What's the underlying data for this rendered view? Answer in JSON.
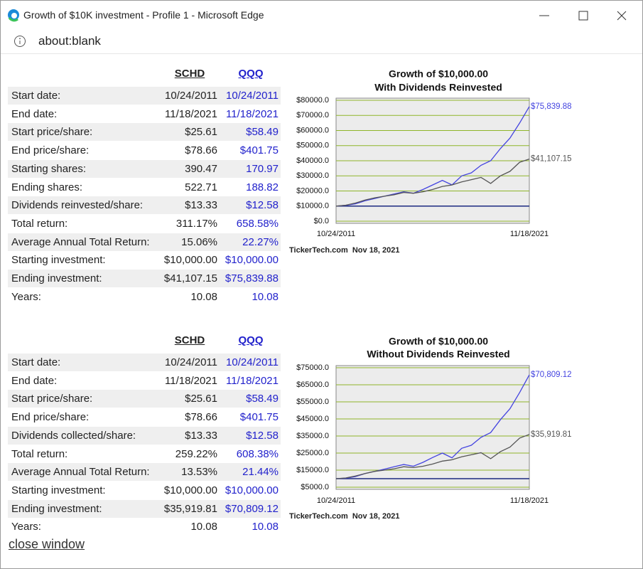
{
  "window": {
    "title": "Growth of $10K investment - Profile 1 - Microsoft Edge",
    "address": "about:blank"
  },
  "tables": [
    {
      "headers": [
        "SCHD",
        "QQQ"
      ],
      "rows": [
        [
          "Start date:",
          "10/24/2011",
          "10/24/2011"
        ],
        [
          "End date:",
          "11/18/2021",
          "11/18/2021"
        ],
        [
          "Start price/share:",
          "$25.61",
          "$58.49"
        ],
        [
          "End price/share:",
          "$78.66",
          "$401.75"
        ],
        [
          "Starting shares:",
          "390.47",
          "170.97"
        ],
        [
          "Ending shares:",
          "522.71",
          "188.82"
        ],
        [
          "Dividends reinvested/share:",
          "$13.33",
          "$12.58"
        ],
        [
          "Total return:",
          "311.17%",
          "658.58%"
        ],
        [
          "Average Annual Total Return:",
          "15.06%",
          "22.27%"
        ],
        [
          "Starting investment:",
          "$10,000.00",
          "$10,000.00"
        ],
        [
          "Ending investment:",
          "$41,107.15",
          "$75,839.88"
        ],
        [
          "Years:",
          "10.08",
          "10.08"
        ]
      ]
    },
    {
      "headers": [
        "SCHD",
        "QQQ"
      ],
      "rows": [
        [
          "Start date:",
          "10/24/2011",
          "10/24/2011"
        ],
        [
          "End date:",
          "11/18/2021",
          "11/18/2021"
        ],
        [
          "Start price/share:",
          "$25.61",
          "$58.49"
        ],
        [
          "End price/share:",
          "$78.66",
          "$401.75"
        ],
        [
          "Dividends collected/share:",
          "$13.33",
          "$12.58"
        ],
        [
          "Total return:",
          "259.22%",
          "608.38%"
        ],
        [
          "Average Annual Total Return:",
          "13.53%",
          "21.44%"
        ],
        [
          "Starting investment:",
          "$10,000.00",
          "$10,000.00"
        ],
        [
          "Ending investment:",
          "$35,919.81",
          "$70,809.12"
        ],
        [
          "Years:",
          "10.08",
          "10.08"
        ]
      ]
    }
  ],
  "close_link": "close window",
  "chart_data": [
    {
      "type": "line",
      "title": "Growth of $10,000.00",
      "subtitle": "With Dividends Reinvested",
      "categories": [
        "10/24/2011",
        null,
        null,
        null,
        null,
        null,
        null,
        null,
        null,
        null,
        null,
        null,
        null,
        null,
        null,
        null,
        null,
        null,
        null,
        null,
        "11/18/2021"
      ],
      "series": [
        {
          "color": "#4444e0",
          "values": [
            10000,
            10500,
            11500,
            13500,
            15000,
            16500,
            18000,
            19500,
            18500,
            21000,
            24000,
            27000,
            24000,
            30000,
            32000,
            37000,
            40000,
            48000,
            55000,
            65000,
            75839.88
          ],
          "value_labels": [
            null,
            null,
            null,
            null,
            null,
            null,
            null,
            null,
            null,
            null,
            null,
            null,
            null,
            null,
            null,
            null,
            null,
            null,
            null,
            null,
            "$75,839.88"
          ]
        },
        {
          "color": "#555555",
          "values": [
            10000,
            10600,
            12000,
            14000,
            15500,
            16500,
            17500,
            19000,
            18500,
            19500,
            21000,
            23000,
            24000,
            26000,
            27500,
            29000,
            25000,
            30000,
            33000,
            39000,
            41107.15
          ],
          "value_labels": [
            null,
            null,
            null,
            null,
            null,
            null,
            null,
            null,
            null,
            null,
            null,
            null,
            null,
            null,
            null,
            null,
            null,
            null,
            null,
            null,
            "$41,107.15"
          ]
        }
      ],
      "ylim": [
        0,
        80000
      ],
      "yticks": [
        {
          "value": 0,
          "label": "$0.0"
        },
        {
          "value": 10000,
          "label": "$10000.0"
        },
        {
          "value": 20000,
          "label": "$20000.0"
        },
        {
          "value": 30000,
          "label": "$30000.0"
        },
        {
          "value": 40000,
          "label": "$40000.0"
        },
        {
          "value": 50000,
          "label": "$50000.0"
        },
        {
          "value": 60000,
          "label": "$60000.0"
        },
        {
          "value": 70000,
          "label": "$70000.0"
        },
        {
          "value": 80000,
          "label": "$80000.0"
        }
      ],
      "grid": true,
      "grid_color": "#8fb52a",
      "background": "#ececec",
      "reference_line": {
        "value": 10000,
        "color": "#1c2a80"
      },
      "source": "TickerTech.com  Nov 18, 2021"
    },
    {
      "type": "line",
      "title": "Growth of $10,000.00",
      "subtitle": "Without Dividends Reinvested",
      "categories": [
        "10/24/2011",
        null,
        null,
        null,
        null,
        null,
        null,
        null,
        null,
        null,
        null,
        null,
        null,
        null,
        null,
        null,
        null,
        null,
        null,
        null,
        "11/18/2021"
      ],
      "series": [
        {
          "color": "#4444e0",
          "values": [
            10000,
            10300,
            11200,
            13000,
            14300,
            15600,
            17000,
            18300,
            17300,
            19600,
            22400,
            25000,
            22200,
            27800,
            29600,
            34200,
            37000,
            44500,
            51000,
            60500,
            70809.12
          ],
          "value_labels": [
            null,
            null,
            null,
            null,
            null,
            null,
            null,
            null,
            null,
            null,
            null,
            null,
            null,
            null,
            null,
            null,
            null,
            null,
            null,
            null,
            "$70,809.12"
          ]
        },
        {
          "color": "#555555",
          "values": [
            10000,
            10400,
            11600,
            13000,
            14300,
            15000,
            15800,
            17000,
            16500,
            17300,
            18600,
            20300,
            21100,
            22800,
            24000,
            25200,
            21700,
            25800,
            28500,
            33800,
            35919.81
          ],
          "value_labels": [
            null,
            null,
            null,
            null,
            null,
            null,
            null,
            null,
            null,
            null,
            null,
            null,
            null,
            null,
            null,
            null,
            null,
            null,
            null,
            null,
            "$35,919.81"
          ]
        }
      ],
      "ylim": [
        5000,
        75000
      ],
      "yticks": [
        {
          "value": 5000,
          "label": "$5000.0"
        },
        {
          "value": 15000,
          "label": "$15000.0"
        },
        {
          "value": 25000,
          "label": "$25000.0"
        },
        {
          "value": 35000,
          "label": "$35000.0"
        },
        {
          "value": 45000,
          "label": "$45000.0"
        },
        {
          "value": 55000,
          "label": "$55000.0"
        },
        {
          "value": 65000,
          "label": "$65000.0"
        },
        {
          "value": 75000,
          "label": "$75000.0"
        }
      ],
      "grid": true,
      "grid_color": "#8fb52a",
      "background": "#ececec",
      "reference_line": {
        "value": 10000,
        "color": "#1c2a80"
      },
      "source": "TickerTech.com  Nov 18, 2021"
    }
  ]
}
